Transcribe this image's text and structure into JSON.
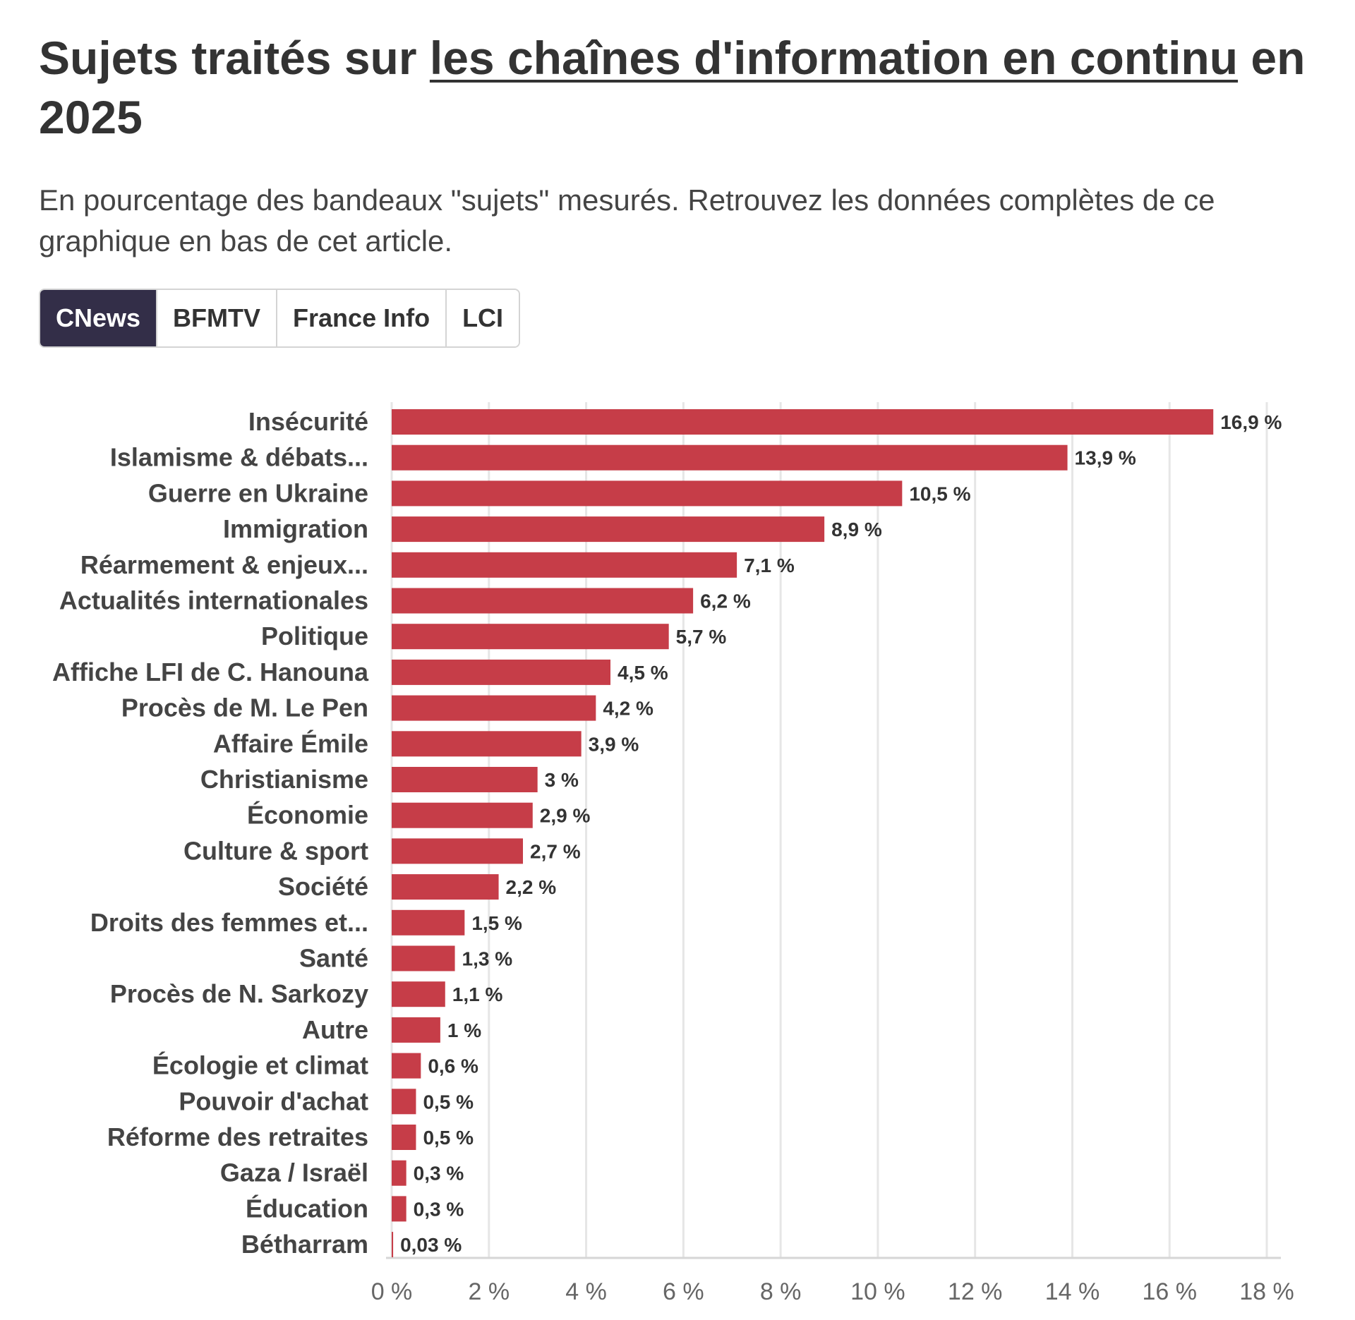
{
  "header": {
    "title_part1": "Sujets traités sur ",
    "title_link": "les chaînes d'information en continu",
    "title_part2": " en 2025",
    "subtitle": "En pourcentage des bandeaux \"sujets\" mesurés. Retrouvez les données complètes de ce graphique en bas de cet article."
  },
  "tabs": [
    {
      "label": "CNews",
      "active": true
    },
    {
      "label": "BFMTV",
      "active": false
    },
    {
      "label": "France Info",
      "active": false
    },
    {
      "label": "LCI",
      "active": false
    }
  ],
  "chart_data": {
    "type": "bar",
    "orientation": "horizontal",
    "categories": [
      "Insécurité",
      "Islamisme & débats...",
      "Guerre en Ukraine",
      "Immigration",
      "Réarmement & enjeux...",
      "Actualités internationales",
      "Politique",
      "Affiche LFI de C. Hanouna",
      "Procès de M. Le Pen",
      "Affaire Émile",
      "Christianisme",
      "Économie",
      "Culture & sport",
      "Société",
      "Droits des femmes et...",
      "Santé",
      "Procès de N. Sarkozy",
      "Autre",
      "Écologie et climat",
      "Pouvoir d'achat",
      "Réforme des retraites",
      "Gaza / Israël",
      "Éducation",
      "Bétharram"
    ],
    "values": [
      16.9,
      13.9,
      10.5,
      8.9,
      7.1,
      6.2,
      5.7,
      4.5,
      4.2,
      3.9,
      3,
      2.9,
      2.7,
      2.2,
      1.5,
      1.3,
      1.1,
      1,
      0.6,
      0.5,
      0.5,
      0.3,
      0.3,
      0.03
    ],
    "value_labels": [
      "16,9 %",
      "13,9 %",
      "10,5 %",
      "8,9 %",
      "7,1 %",
      "6,2 %",
      "5,7 %",
      "4,5 %",
      "4,2 %",
      "3,9 %",
      "3 %",
      "2,9 %",
      "2,7 %",
      "2,2 %",
      "1,5 %",
      "1,3 %",
      "1,1 %",
      "1 %",
      "0,6 %",
      "0,5 %",
      "0,5 %",
      "0,3 %",
      "0,3 %",
      "0,03 %"
    ],
    "xlim": [
      0,
      18
    ],
    "xticks": [
      0,
      2,
      4,
      6,
      8,
      10,
      12,
      14,
      16,
      18
    ],
    "xtick_labels": [
      "0 %",
      "2 %",
      "4 %",
      "6 %",
      "8 %",
      "10 %",
      "12 %",
      "14 %",
      "16 %",
      "18 %"
    ],
    "grid": true,
    "bar_color": "#c63d48"
  }
}
